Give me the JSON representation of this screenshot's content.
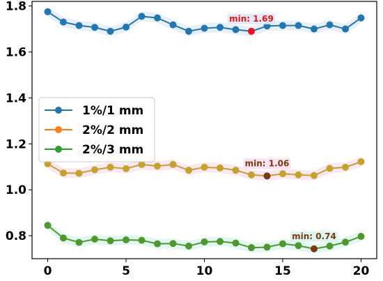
{
  "chart_data": {
    "type": "line",
    "x": [
      0,
      1,
      2,
      3,
      4,
      5,
      6,
      7,
      8,
      9,
      10,
      11,
      12,
      13,
      14,
      15,
      16,
      17,
      18,
      19,
      20
    ],
    "xlim": [
      -1,
      21
    ],
    "ylim": [
      0.7,
      1.82
    ],
    "xticks": [
      0,
      5,
      10,
      15,
      20
    ],
    "xtick_labels": [
      "0",
      "5",
      "10",
      "15",
      "20"
    ],
    "yticks": [
      0.8,
      1.0,
      1.2,
      1.4,
      1.6,
      1.8
    ],
    "ytick_labels": [
      "0.8",
      "1.0",
      "1.2",
      "1.4",
      "1.6",
      "1.8"
    ],
    "grid": false,
    "legend_position": "center-left",
    "series": [
      {
        "name": "1%/1 mm",
        "color": "#1f77b4",
        "min_marker_color": "#e8141a",
        "annotation_color": "#e8141a",
        "band_color": "#dfe9f4",
        "values": [
          1.775,
          1.73,
          1.715,
          1.707,
          1.69,
          1.708,
          1.755,
          1.748,
          1.718,
          1.69,
          1.703,
          1.707,
          1.697,
          1.69,
          1.713,
          1.715,
          1.715,
          1.7,
          1.718,
          1.7,
          1.748
        ],
        "min_index": 13,
        "annotation": "min: 1.69"
      },
      {
        "name": "2%/2 mm",
        "color": "#ff7f0e",
        "line_color": "#c7a12a",
        "min_marker_color": "#7a3a10",
        "annotation_color": "#7a3a10",
        "band_color": "#f8dff0",
        "values": [
          1.113,
          1.073,
          1.072,
          1.087,
          1.098,
          1.092,
          1.11,
          1.103,
          1.11,
          1.085,
          1.098,
          1.095,
          1.085,
          1.065,
          1.06,
          1.07,
          1.065,
          1.062,
          1.093,
          1.098,
          1.122
        ],
        "min_index": 14,
        "annotation": "min: 1.06"
      },
      {
        "name": "2%/3 mm",
        "color": "#2ca02c",
        "line_color": "#4c9a2a",
        "min_marker_color": "#7a3a10",
        "annotation_color": "#7a3a10",
        "band_color": "#d8f4ec",
        "values": [
          0.845,
          0.79,
          0.771,
          0.785,
          0.778,
          0.782,
          0.78,
          0.765,
          0.766,
          0.755,
          0.773,
          0.775,
          0.768,
          0.748,
          0.75,
          0.765,
          0.757,
          0.743,
          0.755,
          0.772,
          0.797
        ],
        "min_index": 17,
        "annotation": "min: 0.74"
      }
    ]
  }
}
